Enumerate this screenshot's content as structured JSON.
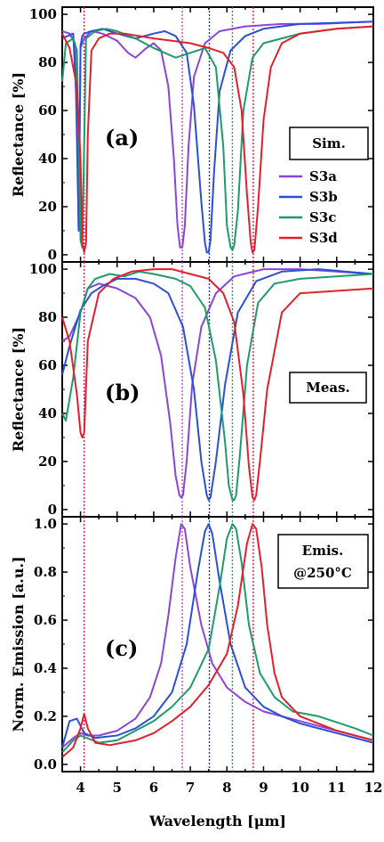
{
  "figure": {
    "x_axis_label": "Wavelength [μm]",
    "x_ticks": [
      "4",
      "5",
      "6",
      "7",
      "8",
      "9",
      "10",
      "11",
      "12"
    ],
    "colors": {
      "S3a": "#8a44d8",
      "S3b": "#2a4fd6",
      "S3c": "#1f9a6a",
      "S3d": "#e0202c",
      "ref_lines": [
        "#d040d0",
        "#2030c0",
        "#20a060",
        "#c02040"
      ]
    }
  },
  "chart_data": [
    {
      "type": "line",
      "panel": "(a)",
      "ylabel": "Reflectance [%]",
      "box_label": "Sim.",
      "xlim": [
        3.5,
        12
      ],
      "ylim": [
        -3,
        103
      ],
      "y_ticks": [
        "0",
        "20",
        "40",
        "60",
        "80",
        "100"
      ],
      "legend": [
        "S3a",
        "S3b",
        "S3c",
        "S3d"
      ],
      "series": [
        {
          "name": "S3a",
          "x": [
            3.5,
            3.7,
            3.85,
            3.95,
            4.0,
            4.1,
            4.3,
            4.6,
            5.0,
            5.3,
            5.5,
            5.8,
            6.0,
            6.2,
            6.4,
            6.55,
            6.65,
            6.72,
            6.78,
            6.85,
            6.95,
            7.1,
            7.4,
            7.8,
            8.5,
            9.5,
            10.5,
            12
          ],
          "y": [
            93,
            92,
            88,
            10,
            86,
            90,
            93,
            92,
            89,
            84,
            82,
            86,
            88,
            85,
            70,
            40,
            12,
            3,
            3,
            12,
            45,
            74,
            88,
            93,
            95,
            96,
            96,
            97
          ]
        },
        {
          "name": "S3b",
          "x": [
            3.5,
            3.8,
            3.9,
            3.95,
            4.0,
            4.05,
            4.1,
            4.3,
            4.6,
            5.0,
            5.5,
            6.0,
            6.3,
            6.6,
            6.9,
            7.1,
            7.3,
            7.4,
            7.45,
            7.5,
            7.55,
            7.65,
            7.8,
            8.1,
            8.5,
            9.0,
            10.0,
            12
          ],
          "y": [
            90,
            92,
            60,
            10,
            87,
            91,
            92,
            93,
            94,
            92,
            90,
            92,
            93,
            91,
            84,
            62,
            22,
            5,
            1,
            1,
            6,
            35,
            68,
            85,
            91,
            94,
            96,
            97
          ]
        },
        {
          "name": "S3c",
          "x": [
            3.5,
            3.6,
            3.8,
            3.9,
            4.0,
            4.05,
            4.15,
            4.4,
            4.7,
            5.0,
            5.5,
            6.0,
            6.3,
            6.6,
            7.0,
            7.4,
            7.7,
            7.9,
            8.0,
            8.1,
            8.15,
            8.2,
            8.3,
            8.45,
            8.7,
            9.0,
            9.5,
            10,
            11,
            12
          ],
          "y": [
            72,
            88,
            90,
            85,
            6,
            3,
            90,
            93,
            94,
            93,
            90,
            86,
            84,
            82,
            84,
            86,
            78,
            45,
            12,
            3,
            2,
            4,
            18,
            60,
            82,
            88,
            90,
            92,
            94,
            95
          ]
        },
        {
          "name": "S3d",
          "x": [
            3.5,
            3.7,
            3.9,
            4.0,
            4.05,
            4.1,
            4.15,
            4.2,
            4.3,
            4.5,
            4.8,
            5.2,
            6.0,
            6.5,
            7.0,
            7.5,
            7.9,
            8.2,
            8.4,
            8.55,
            8.65,
            8.7,
            8.75,
            8.85,
            9.0,
            9.2,
            9.5,
            10,
            11,
            12
          ],
          "y": [
            92,
            86,
            70,
            40,
            5,
            1,
            5,
            50,
            85,
            90,
            92,
            92,
            90,
            89,
            88,
            86,
            84,
            78,
            60,
            25,
            5,
            1,
            2,
            20,
            56,
            78,
            88,
            92,
            94,
            95
          ]
        }
      ]
    },
    {
      "type": "line",
      "panel": "(b)",
      "ylabel": "Reflectance [%]",
      "box_label": "Meas.",
      "xlim": [
        3.5,
        12
      ],
      "ylim": [
        -3,
        103
      ],
      "y_ticks": [
        "0",
        "20",
        "40",
        "60",
        "80",
        "100"
      ],
      "series": [
        {
          "name": "S3a",
          "x": [
            3.5,
            3.7,
            4.0,
            4.2,
            4.5,
            5.0,
            5.5,
            5.9,
            6.2,
            6.45,
            6.6,
            6.7,
            6.75,
            6.8,
            6.9,
            7.05,
            7.3,
            7.7,
            8.2,
            9.0,
            10,
            12
          ],
          "y": [
            70,
            72,
            82,
            92,
            94,
            92,
            88,
            80,
            64,
            36,
            14,
            6,
            5,
            6,
            20,
            52,
            76,
            90,
            97,
            100,
            100,
            98
          ]
        },
        {
          "name": "S3b",
          "x": [
            3.5,
            3.7,
            4.0,
            4.3,
            4.6,
            5.0,
            5.5,
            6.0,
            6.4,
            6.8,
            7.1,
            7.3,
            7.45,
            7.5,
            7.55,
            7.7,
            7.95,
            8.3,
            8.8,
            9.5,
            10.5,
            12
          ],
          "y": [
            56,
            68,
            83,
            90,
            93,
            96,
            96,
            94,
            90,
            76,
            50,
            20,
            6,
            4,
            5,
            20,
            52,
            82,
            95,
            99,
            100,
            98
          ]
        },
        {
          "name": "S3c",
          "x": [
            3.5,
            3.6,
            3.8,
            4.0,
            4.2,
            4.4,
            4.8,
            5.2,
            5.6,
            6.0,
            6.6,
            7.0,
            7.4,
            7.7,
            7.95,
            8.05,
            8.15,
            8.2,
            8.25,
            8.35,
            8.55,
            8.85,
            9.3,
            10,
            12
          ],
          "y": [
            40,
            37,
            55,
            82,
            92,
            96,
            98,
            97,
            99,
            98,
            96,
            93,
            84,
            62,
            28,
            10,
            4,
            4,
            6,
            22,
            60,
            86,
            94,
            96,
            98
          ]
        },
        {
          "name": "S3d",
          "x": [
            3.5,
            3.7,
            3.9,
            4.0,
            4.05,
            4.1,
            4.2,
            4.5,
            4.9,
            5.4,
            6.0,
            6.5,
            7.0,
            7.5,
            7.9,
            8.2,
            8.45,
            8.6,
            8.7,
            8.75,
            8.8,
            8.9,
            9.1,
            9.5,
            10,
            12
          ],
          "y": [
            80,
            70,
            48,
            32,
            30,
            32,
            70,
            90,
            96,
            99,
            100,
            100,
            98,
            96,
            90,
            78,
            48,
            18,
            5,
            4,
            6,
            20,
            50,
            82,
            90,
            92
          ]
        }
      ]
    },
    {
      "type": "line",
      "panel": "(c)",
      "ylabel": "Norm. Emission [a.u.]",
      "box_label": "Emis.",
      "box_label_2": "@250°C",
      "xlim": [
        3.5,
        12
      ],
      "ylim": [
        -0.03,
        1.03
      ],
      "y_ticks": [
        "0.0",
        "0.2",
        "0.4",
        "0.6",
        "0.8",
        "1.0"
      ],
      "series": [
        {
          "name": "S3a",
          "x": [
            3.5,
            3.8,
            4.0,
            4.2,
            4.5,
            5.0,
            5.5,
            5.9,
            6.2,
            6.4,
            6.6,
            6.75,
            6.85,
            7.0,
            7.3,
            7.6,
            8.0,
            8.5,
            9.0,
            10,
            11,
            12
          ],
          "y": [
            0.07,
            0.11,
            0.13,
            0.12,
            0.12,
            0.14,
            0.19,
            0.28,
            0.42,
            0.62,
            0.86,
            1.0,
            0.98,
            0.82,
            0.58,
            0.42,
            0.32,
            0.26,
            0.22,
            0.18,
            0.14,
            0.1
          ]
        },
        {
          "name": "S3b",
          "x": [
            3.5,
            3.7,
            3.9,
            4.1,
            4.4,
            5.0,
            5.5,
            6.0,
            6.5,
            6.9,
            7.2,
            7.4,
            7.5,
            7.6,
            7.8,
            8.1,
            8.5,
            9.0,
            9.5,
            10,
            11,
            12
          ],
          "y": [
            0.07,
            0.18,
            0.19,
            0.13,
            0.11,
            0.12,
            0.15,
            0.2,
            0.3,
            0.5,
            0.8,
            0.97,
            1.0,
            0.96,
            0.76,
            0.5,
            0.32,
            0.24,
            0.2,
            0.17,
            0.13,
            0.09
          ]
        },
        {
          "name": "S3c",
          "x": [
            3.5,
            3.8,
            4.0,
            4.5,
            5.0,
            5.5,
            6.0,
            6.5,
            7.0,
            7.5,
            7.8,
            8.0,
            8.15,
            8.25,
            8.4,
            8.6,
            8.9,
            9.3,
            9.8,
            10.5,
            11.5,
            12
          ],
          "y": [
            0.05,
            0.1,
            0.12,
            0.09,
            0.1,
            0.14,
            0.18,
            0.24,
            0.32,
            0.48,
            0.74,
            0.94,
            1.0,
            0.98,
            0.84,
            0.58,
            0.38,
            0.28,
            0.22,
            0.2,
            0.15,
            0.12
          ]
        },
        {
          "name": "S3d",
          "x": [
            3.5,
            3.8,
            4.0,
            4.1,
            4.2,
            4.4,
            4.8,
            5.5,
            6.0,
            6.5,
            7.0,
            7.5,
            8.0,
            8.3,
            8.55,
            8.7,
            8.8,
            8.95,
            9.1,
            9.3,
            9.5,
            10,
            11,
            12
          ],
          "y": [
            0.03,
            0.07,
            0.15,
            0.21,
            0.15,
            0.09,
            0.08,
            0.1,
            0.13,
            0.18,
            0.24,
            0.33,
            0.46,
            0.66,
            0.92,
            1.0,
            0.98,
            0.82,
            0.58,
            0.38,
            0.28,
            0.2,
            0.14,
            0.1
          ]
        }
      ]
    }
  ],
  "reference_lines_x": [
    4.1,
    6.78,
    7.52,
    8.15,
    8.72
  ]
}
